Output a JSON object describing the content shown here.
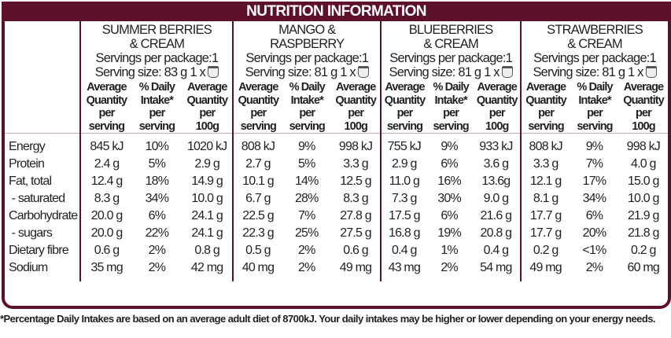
{
  "title": "NUTRITION INFORMATION",
  "colors": {
    "brand": "#5e0f2a"
  },
  "column_headers": [
    "Average Quantity per serving",
    "% Daily Intake* per serving",
    "Average Quantity per 100g"
  ],
  "column_header_lines": [
    [
      "Average",
      "Quantity",
      "per",
      "serving"
    ],
    [
      "% Daily",
      "Intake*",
      "per",
      "serving"
    ],
    [
      "Average",
      "Quantity",
      "per",
      "100g"
    ]
  ],
  "products": [
    {
      "name_lines": [
        "SUMMER BERRIES",
        "& CREAM"
      ],
      "servings": "Servings per package:1",
      "serving_size": "Serving size: 83 g  1 x",
      "icon": "yoghurt-cup-icon"
    },
    {
      "name_lines": [
        "MANGO &",
        "RASPBERRY"
      ],
      "servings": "Servings per package:1",
      "serving_size": "Serving size: 81 g  1 x",
      "icon": "yoghurt-cup-icon"
    },
    {
      "name_lines": [
        "BLUEBERRIES",
        "& CREAM"
      ],
      "servings": "Servings per package:1",
      "serving_size": "Serving size: 81 g  1 x",
      "icon": "yoghurt-cup-icon"
    },
    {
      "name_lines": [
        "STRAWBERRIES",
        "& CREAM"
      ],
      "servings": "Servings per package:1",
      "serving_size": "Serving size: 81 g  1 x",
      "icon": "yoghurt-cup-icon"
    }
  ],
  "rows": [
    {
      "label": "Energy",
      "values": [
        "845 kJ",
        "10%",
        "1020 kJ",
        "808 kJ",
        "9%",
        "998 kJ",
        "755 kJ",
        "9%",
        "933 kJ",
        "808 kJ",
        "9%",
        "998 kJ"
      ]
    },
    {
      "label": "Protein",
      "values": [
        "2.4 g",
        "5%",
        "2.9 g",
        "2.7 g",
        "5%",
        "3.3 g",
        "2.9 g",
        "6%",
        "3.6 g",
        "3.3 g",
        "7%",
        "4.0 g"
      ]
    },
    {
      "label": "Fat, total",
      "values": [
        "12.4 g",
        "18%",
        "14.9 g",
        "10.1 g",
        "14%",
        "12.5 g",
        "11.0 g",
        "16%",
        "13.6g",
        "12.1 g",
        "17%",
        "15.0 g"
      ]
    },
    {
      "label": " - saturated",
      "values": [
        "8.3 g",
        "34%",
        "10.0 g",
        "6.7 g",
        "28%",
        "8.3 g",
        "7.3 g",
        "30%",
        "9.0 g",
        "8.1 g",
        "34%",
        "10.0 g"
      ]
    },
    {
      "label": "Carbohydrate",
      "values": [
        "20.0 g",
        "6%",
        "24.1 g",
        "22.5 g",
        "7%",
        "27.8 g",
        "17.5 g",
        "6%",
        "21.6 g",
        "17.7 g",
        "6%",
        "21.9 g"
      ]
    },
    {
      "label": " - sugars",
      "values": [
        "20.0 g",
        "22%",
        "24.1 g",
        "22.3 g",
        "25%",
        "27.5 g",
        "16.8 g",
        "19%",
        "20.8 g",
        "17.7 g",
        "20%",
        "21.8 g"
      ]
    },
    {
      "label": "Dietary fibre",
      "values": [
        "0.6 g",
        "2%",
        "0.8 g",
        "0.5 g",
        "2%",
        "0.6 g",
        "0.4 g",
        "1%",
        "0.4 g",
        "0.2 g",
        "<1%",
        "0.2 g"
      ]
    },
    {
      "label": "Sodium",
      "values": [
        "35 mg",
        "2%",
        "42 mg",
        "40 mg",
        "2%",
        "49 mg",
        "43 mg",
        "2%",
        "54 mg",
        "49 mg",
        "2%",
        "60 mg"
      ]
    }
  ],
  "footnote": "*Percentage Daily Intakes are based on an average adult diet of 8700kJ. Your daily intakes may be higher or lower depending on your energy needs."
}
